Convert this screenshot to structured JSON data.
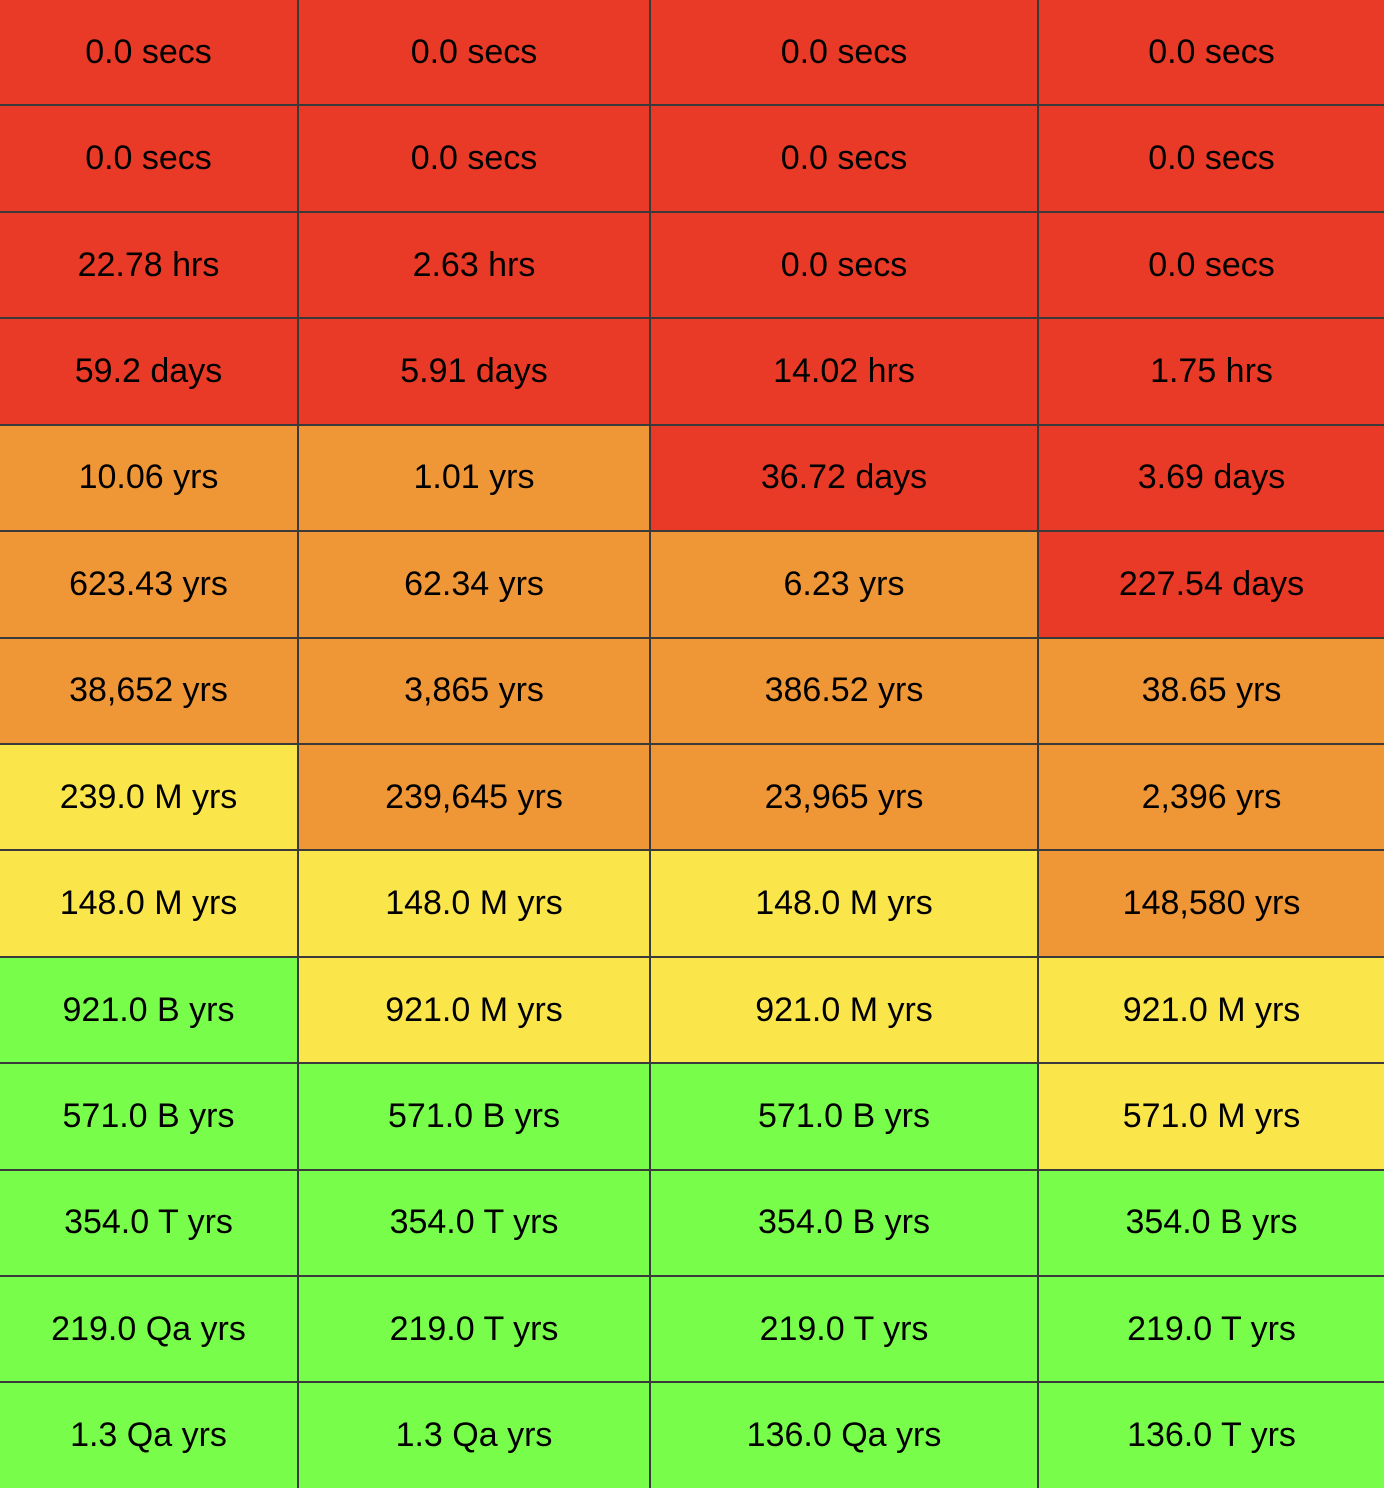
{
  "colors": {
    "red": "#e83a27",
    "orange": "#ef9636",
    "yellow": "#fae54b",
    "green": "#77fd4a"
  },
  "chart_data": {
    "type": "table",
    "rows": [
      [
        {
          "text": "0.0 secs",
          "level": "red"
        },
        {
          "text": "0.0 secs",
          "level": "red"
        },
        {
          "text": "0.0 secs",
          "level": "red"
        },
        {
          "text": "0.0 secs",
          "level": "red"
        }
      ],
      [
        {
          "text": "0.0 secs",
          "level": "red"
        },
        {
          "text": "0.0 secs",
          "level": "red"
        },
        {
          "text": "0.0 secs",
          "level": "red"
        },
        {
          "text": "0.0 secs",
          "level": "red"
        }
      ],
      [
        {
          "text": "22.78 hrs",
          "level": "red"
        },
        {
          "text": "2.63 hrs",
          "level": "red"
        },
        {
          "text": "0.0 secs",
          "level": "red"
        },
        {
          "text": "0.0 secs",
          "level": "red"
        }
      ],
      [
        {
          "text": "59.2 days",
          "level": "red"
        },
        {
          "text": "5.91 days",
          "level": "red"
        },
        {
          "text": "14.02 hrs",
          "level": "red"
        },
        {
          "text": "1.75 hrs",
          "level": "red"
        }
      ],
      [
        {
          "text": "10.06 yrs",
          "level": "orange"
        },
        {
          "text": "1.01 yrs",
          "level": "orange"
        },
        {
          "text": "36.72 days",
          "level": "red"
        },
        {
          "text": "3.69 days",
          "level": "red"
        }
      ],
      [
        {
          "text": "623.43 yrs",
          "level": "orange"
        },
        {
          "text": "62.34 yrs",
          "level": "orange"
        },
        {
          "text": "6.23 yrs",
          "level": "orange"
        },
        {
          "text": "227.54 days",
          "level": "red"
        }
      ],
      [
        {
          "text": "38,652 yrs",
          "level": "orange"
        },
        {
          "text": "3,865 yrs",
          "level": "orange"
        },
        {
          "text": "386.52 yrs",
          "level": "orange"
        },
        {
          "text": "38.65 yrs",
          "level": "orange"
        }
      ],
      [
        {
          "text": "239.0 M yrs",
          "level": "yellow"
        },
        {
          "text": "239,645 yrs",
          "level": "orange"
        },
        {
          "text": "23,965 yrs",
          "level": "orange"
        },
        {
          "text": "2,396 yrs",
          "level": "orange"
        }
      ],
      [
        {
          "text": "148.0 M yrs",
          "level": "yellow"
        },
        {
          "text": "148.0 M yrs",
          "level": "yellow"
        },
        {
          "text": "148.0 M yrs",
          "level": "yellow"
        },
        {
          "text": "148,580 yrs",
          "level": "orange"
        }
      ],
      [
        {
          "text": "921.0 B yrs",
          "level": "green"
        },
        {
          "text": "921.0 M yrs",
          "level": "yellow"
        },
        {
          "text": "921.0 M yrs",
          "level": "yellow"
        },
        {
          "text": "921.0 M yrs",
          "level": "yellow"
        }
      ],
      [
        {
          "text": "571.0 B yrs",
          "level": "green"
        },
        {
          "text": "571.0 B yrs",
          "level": "green"
        },
        {
          "text": "571.0 B yrs",
          "level": "green"
        },
        {
          "text": "571.0 M yrs",
          "level": "yellow"
        }
      ],
      [
        {
          "text": "354.0 T yrs",
          "level": "green"
        },
        {
          "text": "354.0 T yrs",
          "level": "green"
        },
        {
          "text": "354.0 B yrs",
          "level": "green"
        },
        {
          "text": "354.0 B yrs",
          "level": "green"
        }
      ],
      [
        {
          "text": "219.0 Qa yrs",
          "level": "green"
        },
        {
          "text": "219.0 T yrs",
          "level": "green"
        },
        {
          "text": "219.0 T yrs",
          "level": "green"
        },
        {
          "text": "219.0 T yrs",
          "level": "green"
        }
      ],
      [
        {
          "text": "1.3 Qa yrs",
          "level": "green"
        },
        {
          "text": "1.3 Qa yrs",
          "level": "green"
        },
        {
          "text": "136.0 Qa yrs",
          "level": "green"
        },
        {
          "text": "136.0 T yrs",
          "level": "green"
        }
      ]
    ]
  }
}
